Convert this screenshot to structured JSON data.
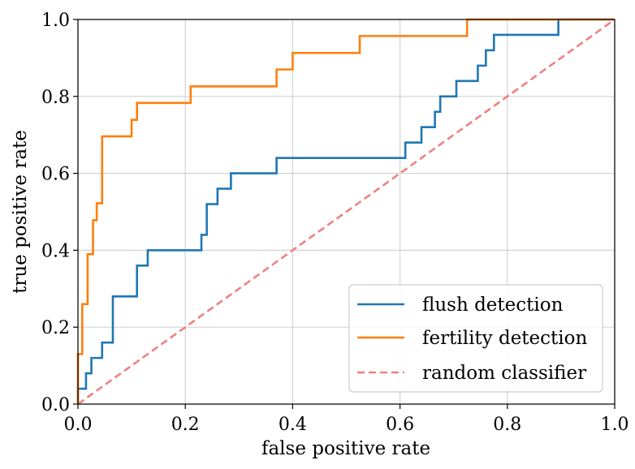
{
  "chart_data": {
    "type": "line",
    "title": "",
    "xlabel": "false positive rate",
    "ylabel": "true positive rate",
    "xlim": [
      0,
      1
    ],
    "ylim": [
      0,
      1
    ],
    "grid": true,
    "legend_position": "bottom-right",
    "xticks": [
      "0.0",
      "0.2",
      "0.4",
      "0.6",
      "0.8",
      "1.0"
    ],
    "yticks": [
      "0.0",
      "0.2",
      "0.4",
      "0.6",
      "0.8",
      "1.0"
    ],
    "series": [
      {
        "name": "flush detection",
        "color": "#1f77b4",
        "style": "solid",
        "x": [
          0,
          0,
          0.015,
          0.015,
          0.025,
          0.025,
          0.045,
          0.045,
          0.065,
          0.065,
          0.11,
          0.11,
          0.13,
          0.13,
          0.23,
          0.23,
          0.24,
          0.24,
          0.26,
          0.26,
          0.285,
          0.285,
          0.37,
          0.37,
          0.61,
          0.61,
          0.64,
          0.64,
          0.665,
          0.665,
          0.675,
          0.675,
          0.705,
          0.705,
          0.745,
          0.745,
          0.76,
          0.76,
          0.775,
          0.775,
          0.895,
          0.895,
          1.0
        ],
        "y": [
          0,
          0.04,
          0.04,
          0.08,
          0.08,
          0.12,
          0.12,
          0.16,
          0.16,
          0.28,
          0.28,
          0.36,
          0.36,
          0.4,
          0.4,
          0.44,
          0.44,
          0.52,
          0.52,
          0.56,
          0.56,
          0.6,
          0.6,
          0.64,
          0.64,
          0.68,
          0.68,
          0.72,
          0.72,
          0.76,
          0.76,
          0.8,
          0.8,
          0.84,
          0.84,
          0.88,
          0.88,
          0.92,
          0.92,
          0.96,
          0.96,
          1.0,
          1.0
        ]
      },
      {
        "name": "fertility detection",
        "color": "#ff7f0e",
        "style": "solid",
        "x": [
          0,
          0,
          0.008,
          0.008,
          0.018,
          0.018,
          0.028,
          0.028,
          0.035,
          0.035,
          0.045,
          0.045,
          0.1,
          0.1,
          0.11,
          0.11,
          0.21,
          0.21,
          0.37,
          0.37,
          0.4,
          0.4,
          0.525,
          0.525,
          0.725,
          0.725,
          1.0
        ],
        "y": [
          0,
          0.13,
          0.13,
          0.26,
          0.26,
          0.39,
          0.39,
          0.478,
          0.478,
          0.522,
          0.522,
          0.696,
          0.696,
          0.739,
          0.739,
          0.783,
          0.783,
          0.826,
          0.826,
          0.87,
          0.87,
          0.913,
          0.913,
          0.957,
          0.957,
          1.0,
          1.0
        ]
      },
      {
        "name": "random classifier",
        "color": "#f08080",
        "style": "dashed",
        "x": [
          0,
          1
        ],
        "y": [
          0,
          1
        ]
      }
    ]
  }
}
